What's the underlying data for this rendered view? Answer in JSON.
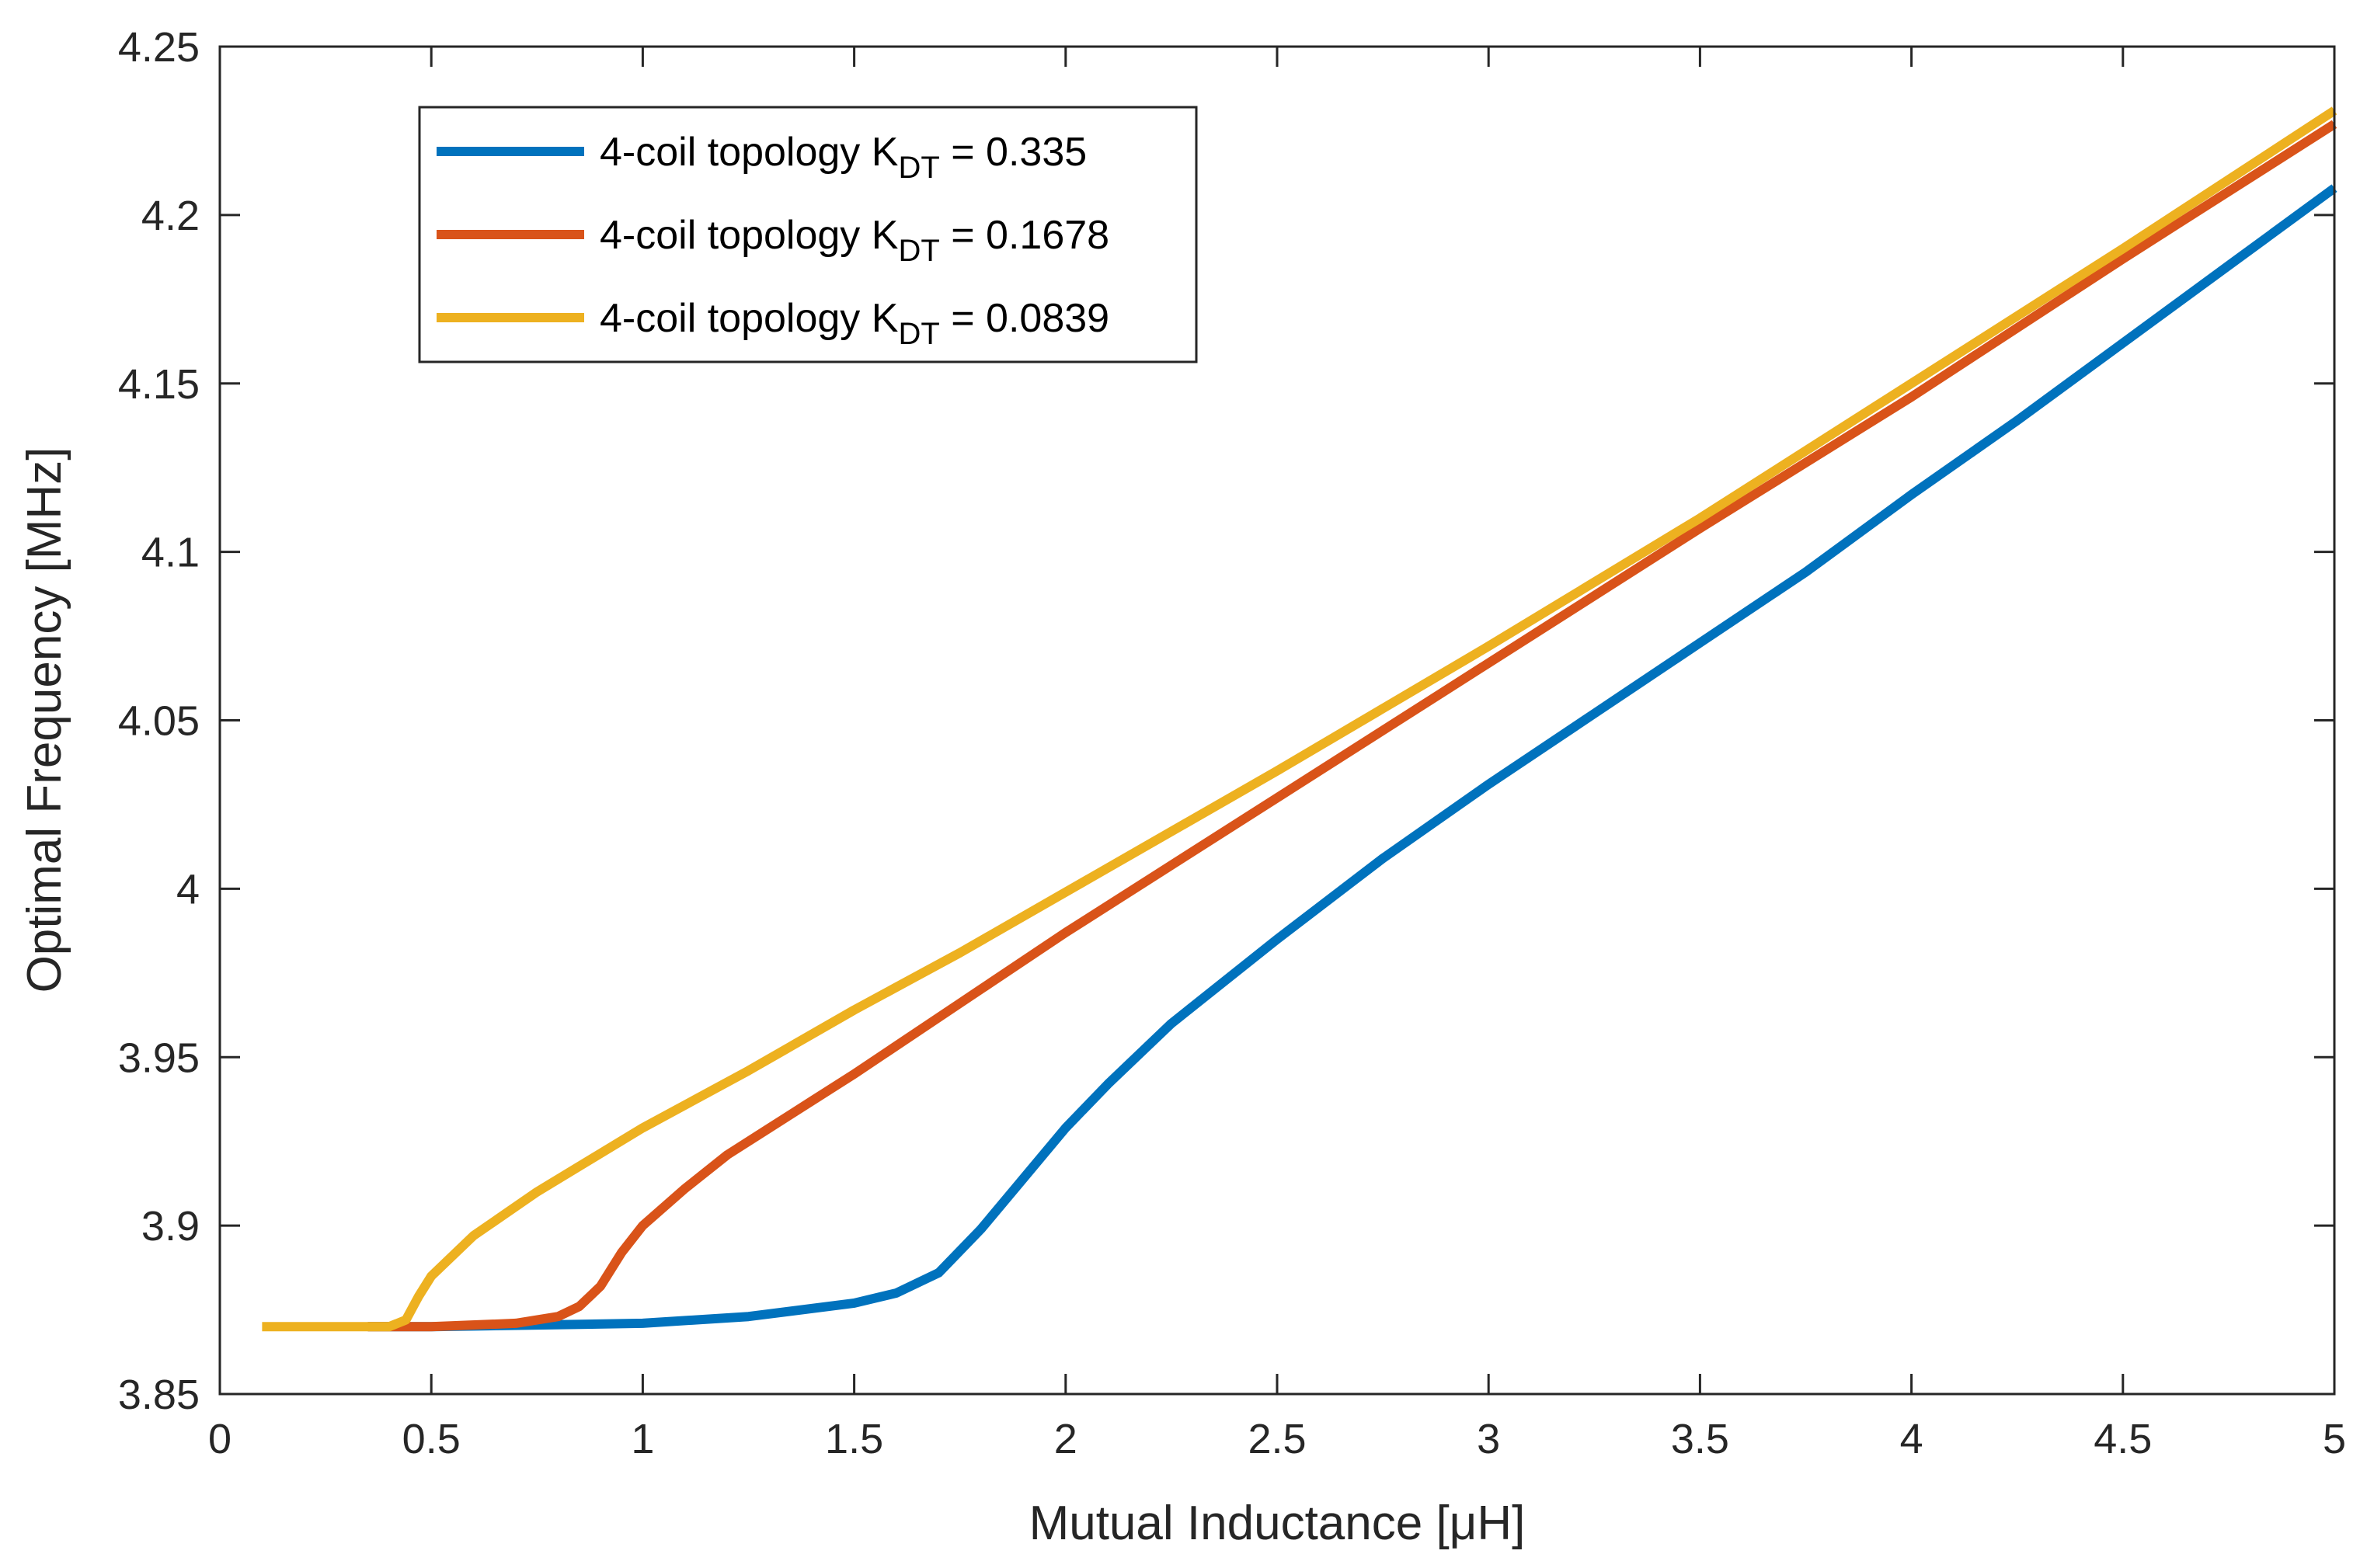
{
  "chart_data": {
    "type": "line",
    "title": "",
    "xlabel": "Mutual Inductance [μH]",
    "ylabel": "Optimal Frequency [MHz]",
    "xlim": [
      0,
      5
    ],
    "ylim": [
      3.85,
      4.25
    ],
    "xticks": [
      0,
      0.5,
      1,
      1.5,
      2,
      2.5,
      3,
      3.5,
      4,
      4.5,
      5
    ],
    "xtick_labels": [
      "0",
      "0.5",
      "1",
      "1.5",
      "2",
      "2.5",
      "3",
      "3.5",
      "4",
      "4.5",
      "5"
    ],
    "yticks": [
      3.85,
      3.9,
      3.95,
      4,
      4.05,
      4.1,
      4.15,
      4.2,
      4.25
    ],
    "ytick_labels": [
      "3.85",
      "3.9",
      "3.95",
      "4",
      "4.05",
      "4.1",
      "4.15",
      "4.2",
      "4.25"
    ],
    "grid": false,
    "legend_position": "top-left",
    "series": [
      {
        "name": "4-coil topology K_DT = 0.335",
        "legend_prefix": "4-coil topology K",
        "legend_sub": "DT",
        "legend_suffix": " = 0.335",
        "color": "#0072BD",
        "x": [
          0.35,
          0.5,
          0.75,
          1.0,
          1.25,
          1.5,
          1.6,
          1.7,
          1.8,
          1.9,
          2.0,
          2.1,
          2.25,
          2.5,
          2.75,
          3.0,
          3.25,
          3.5,
          3.75,
          4.0,
          4.25,
          4.5,
          4.75,
          5.0
        ],
        "y": [
          3.87,
          3.87,
          3.8705,
          3.871,
          3.873,
          3.877,
          3.88,
          3.886,
          3.899,
          3.914,
          3.929,
          3.942,
          3.96,
          3.985,
          4.009,
          4.031,
          4.052,
          4.073,
          4.094,
          4.117,
          4.139,
          4.162,
          4.185,
          4.208
        ]
      },
      {
        "name": "4-coil topology K_DT = 0.1678",
        "legend_prefix": "4-coil topology K",
        "legend_sub": "DT",
        "legend_suffix": " = 0.1678",
        "color": "#D95319",
        "x": [
          0.35,
          0.5,
          0.7,
          0.8,
          0.85,
          0.9,
          0.95,
          1.0,
          1.1,
          1.2,
          1.3,
          1.4,
          1.5,
          1.75,
          2.0,
          2.5,
          3.0,
          3.5,
          4.0,
          4.5,
          5.0
        ],
        "y": [
          3.87,
          3.87,
          3.871,
          3.873,
          3.876,
          3.882,
          3.892,
          3.9,
          3.911,
          3.921,
          3.929,
          3.937,
          3.945,
          3.966,
          3.987,
          4.027,
          4.067,
          4.107,
          4.146,
          4.187,
          4.227
        ]
      },
      {
        "name": "4-coil topology K_DT = 0.0839",
        "legend_prefix": "4-coil topology K",
        "legend_sub": "DT",
        "legend_suffix": " = 0.0839",
        "color": "#EDB120",
        "x": [
          0.1,
          0.3,
          0.4,
          0.44,
          0.47,
          0.5,
          0.6,
          0.75,
          1.0,
          1.25,
          1.5,
          1.75,
          2.0,
          2.5,
          3.0,
          3.5,
          4.0,
          4.5,
          5.0
        ],
        "y": [
          3.87,
          3.87,
          3.87,
          3.872,
          3.879,
          3.885,
          3.897,
          3.91,
          3.929,
          3.946,
          3.964,
          3.981,
          3.999,
          4.035,
          4.072,
          4.11,
          4.15,
          4.19,
          4.231
        ]
      }
    ]
  }
}
